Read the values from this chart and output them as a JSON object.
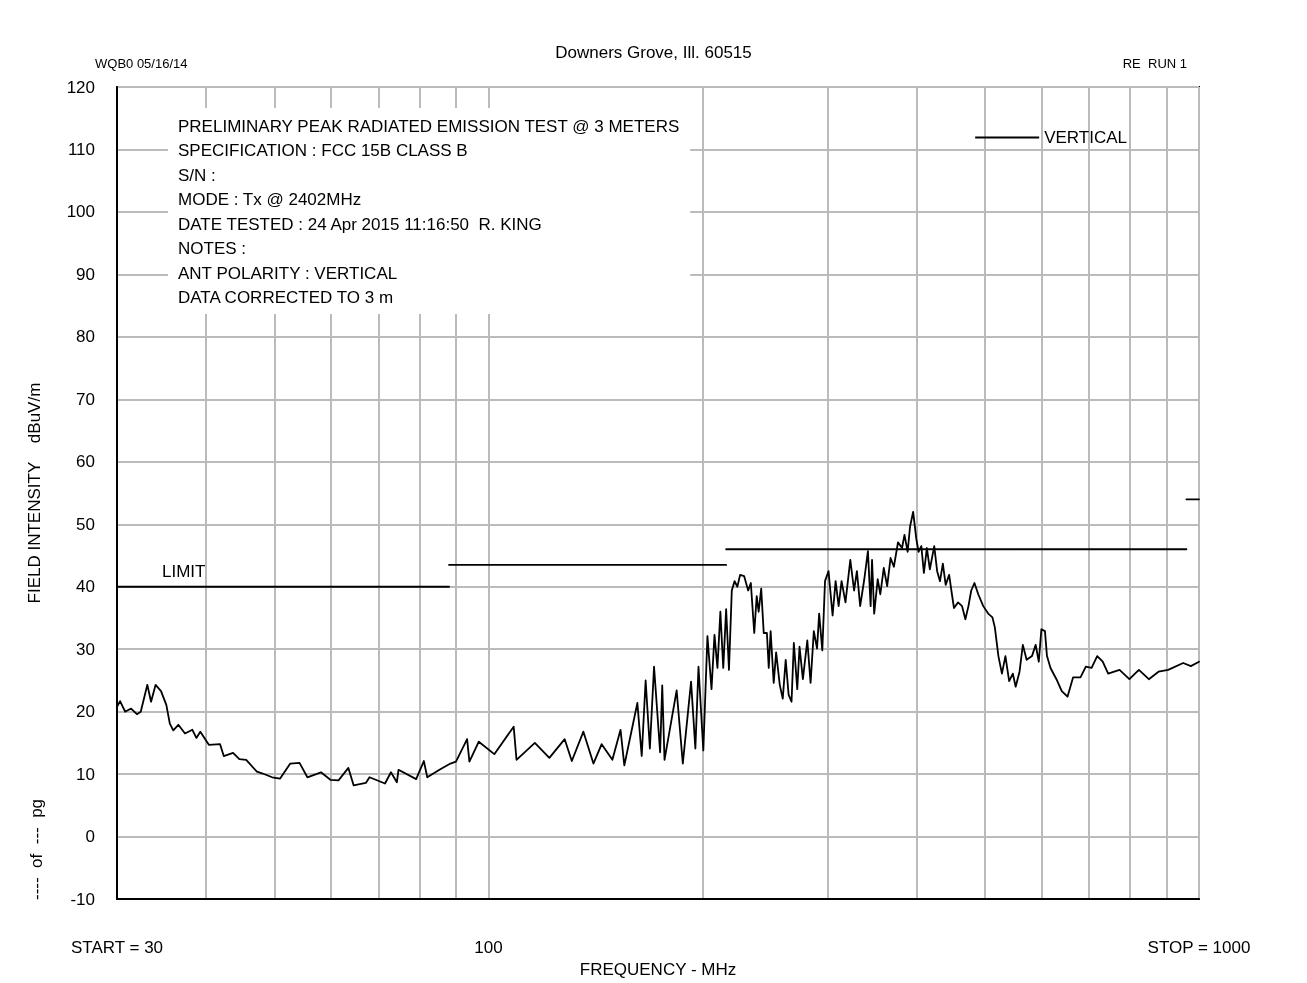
{
  "chart_data": {
    "type": "line",
    "title": "PRELIMINARY PEAK RADIATED EMISSION TEST @ 3 METERS",
    "subtitle": "Downers Grove, Ill. 60515",
    "xlabel": "FREQUENCY - MHz",
    "ylabel": "FIELD INTENSITY    dBuV/m",
    "annotations": [
      "WQB0 05/16/14",
      "RE  RUN 1",
      "SPECIFICATION : FCC 15B CLASS B",
      "S/N :",
      "MODE : Tx @ 2402MHz",
      "DATE TESTED : 24 Apr 2015 11:16:50  R. KING",
      "NOTES :",
      "ANT POLARITY : VERTICAL",
      "DATA CORRECTED TO 3 m",
      "----  of  ---  pg",
      "LIMIT"
    ],
    "series": [
      {
        "name": "VERTICAL",
        "color": "#000000",
        "x": [
          30,
          30.3,
          30.8,
          31.4,
          32,
          32.4,
          33.1,
          33.5,
          34,
          34.6,
          35.2,
          35.6,
          36,
          36.6,
          37.4,
          38.3,
          38.8,
          39.3,
          40.4,
          41.9,
          42.4,
          43.7,
          44.6,
          45.6,
          47.2,
          48.1,
          49.6,
          50.9,
          52.6,
          54.2,
          55.6,
          58.1,
          59.9,
          61.5,
          63.5,
          64.6,
          67.2,
          68,
          71.5,
          72.9,
          74.3,
          74.7,
          79.1,
          81.1,
          82,
          85.3,
          88.4,
          90,
          93.3,
          94,
          96.9,
          101.9,
          108.5,
          109.5,
          116.2,
          121.8,
          128,
          131,
          136,
          140.5,
          144.3,
          149.4,
          153.4,
          155.3,
          162,
          164.3,
          166.4,
          168.7,
          171,
          174.4,
          175.6,
          176.9,
          184,
          187.7,
          192.8,
          195.5,
          197.5,
          200.6,
          203.3,
          206,
          208,
          210,
          212,
          214,
          216,
          218,
          220,
          222,
          224,
          226,
          229,
          232,
          234,
          236.6,
          238.5,
          240,
          242,
          244,
          246.5,
          248,
          249.5,
          252,
          254,
          257,
          259.5,
          262,
          264.5,
          267,
          269,
          272,
          274,
          277,
          281,
          284,
          287,
          290,
          292,
          295,
          297.6,
          301,
          305,
          308,
          311,
          314,
          318,
          323,
          327,
          330,
          333.5,
          338,
          342,
          345,
          346.6,
          349,
          353,
          356,
          360,
          364,
          368,
          372,
          377,
          382,
          385,
          389,
          392,
          396,
          400,
          403,
          406.6,
          410,
          414,
          418,
          424,
          428,
          432,
          436,
          440,
          445,
          449,
          452,
          458,
          464,
          469,
          473.7,
          478,
          483,
          489,
          497,
          505,
          512,
          516,
          522,
          528,
          534,
          540.5,
          547,
          552,
          559,
          565,
          572,
          582,
          589,
          595,
          600,
          607,
          611,
          618,
          630,
          641,
          653,
          665,
          681,
          693,
          706,
          719,
          732,
          745,
          773,
          798,
          823,
          850,
          877,
          905,
          950,
          974,
          1000
        ],
        "values": [
          20.8,
          21.7,
          20,
          20.5,
          19.6,
          20,
          24.3,
          21.6,
          24.3,
          23.3,
          21.1,
          18.1,
          17,
          17.9,
          16.5,
          17.1,
          15.8,
          16.8,
          14.7,
          14.8,
          12.9,
          13.4,
          12.4,
          12.3,
          10.4,
          10.1,
          9.5,
          9.3,
          11.7,
          11.8,
          9.5,
          10.3,
          9.1,
          9,
          11,
          8.2,
          8.6,
          9.5,
          8.5,
          10.3,
          8.7,
          10.7,
          9.2,
          12.1,
          9.5,
          10.7,
          11.7,
          12,
          15.6,
          12,
          15.2,
          13.2,
          17.6,
          12.3,
          15,
          12.6,
          15.6,
          12.1,
          16.8,
          11.7,
          14.8,
          12.3,
          17.1,
          11.4,
          21.4,
          12.9,
          25,
          14.1,
          27.2,
          13.5,
          24.2,
          12.3,
          23.4,
          11.7,
          24.8,
          14.1,
          27.2,
          13.8,
          32.1,
          23.6,
          32.3,
          27,
          36,
          27,
          36.4,
          26.7,
          39.4,
          40.9,
          40,
          41.9,
          41.7,
          39.4,
          40.6,
          32.6,
          38.5,
          36,
          39.7,
          32.6,
          32.6,
          27,
          32.9,
          24.6,
          29.5,
          24.3,
          22.1,
          28.3,
          22.7,
          21.6,
          31,
          23.6,
          30.4,
          25.2,
          31.4,
          24.6,
          32.9,
          30.1,
          35.7,
          29.8,
          40.9,
          42.5,
          35.4,
          40.9,
          36.9,
          40.9,
          37.5,
          44.3,
          39.4,
          42.5,
          36.9,
          41.2,
          45.7,
          36.9,
          44.3,
          35.7,
          41.2,
          38.8,
          43,
          40.1,
          44.6,
          43.2,
          47.1,
          46.2,
          48.3,
          45.6,
          49.6,
          52,
          47.7,
          45.6,
          46.5,
          42.2,
          46.2,
          42.8,
          46.5,
          42.5,
          40.9,
          43.7,
          40.3,
          41.9,
          38.8,
          36.6,
          37.5,
          36.9,
          34.8,
          36.9,
          39.4,
          40.6,
          38.8,
          36.9,
          35.7,
          35.1,
          33.5,
          28.9,
          26.1,
          28.9,
          24.9,
          26.1,
          24,
          26.4,
          30.7,
          28.3,
          28.9,
          30.7,
          28,
          33.2,
          32.9,
          28.9,
          27,
          25.2,
          23.3,
          22.4,
          25.5,
          25.5,
          27.2,
          27,
          28.9,
          28,
          26.1,
          26.7,
          25.2,
          26.7,
          25.2,
          26.4,
          26.7,
          27.8,
          27.3,
          28
        ]
      },
      {
        "color": "#000000",
        "x": [
          30,
          88
        ],
        "values": [
          40,
          40
        ]
      },
      {
        "color": "#000000",
        "x": [
          88,
          216
        ],
        "values": [
          43.5,
          43.5
        ]
      },
      {
        "color": "#000000",
        "x": [
          216,
          960
        ],
        "values": [
          46,
          46
        ]
      },
      {
        "color": "#000000",
        "x": [
          960,
          1000
        ],
        "values": [
          54,
          54
        ]
      }
    ],
    "log": "x",
    "xlim": [
      30,
      1000
    ],
    "xticks": [
      {
        "value": 30,
        "label": "START = 30"
      },
      {
        "value": 40,
        "label": null
      },
      {
        "value": 50,
        "label": null
      },
      {
        "value": 60,
        "label": null
      },
      {
        "value": 70,
        "label": null
      },
      {
        "value": 80,
        "label": null
      },
      {
        "value": 90,
        "label": null
      },
      100,
      {
        "value": 200,
        "label": null
      },
      {
        "value": 300,
        "label": null
      },
      {
        "value": 400,
        "label": null
      },
      {
        "value": 500,
        "label": null
      },
      {
        "value": 600,
        "label": null
      },
      {
        "value": 700,
        "label": null
      },
      {
        "value": 800,
        "label": null
      },
      {
        "value": 900,
        "label": null
      },
      {
        "value": 1000,
        "label": "STOP = 1000"
      }
    ],
    "ylim": [
      -10,
      120
    ],
    "yticks": [
      -10,
      0,
      10,
      20,
      30,
      40,
      50,
      60,
      70,
      80,
      90,
      100,
      110,
      120
    ],
    "grid": true,
    "legend": "top right",
    "marker": "none",
    "line_style": "solid"
  }
}
